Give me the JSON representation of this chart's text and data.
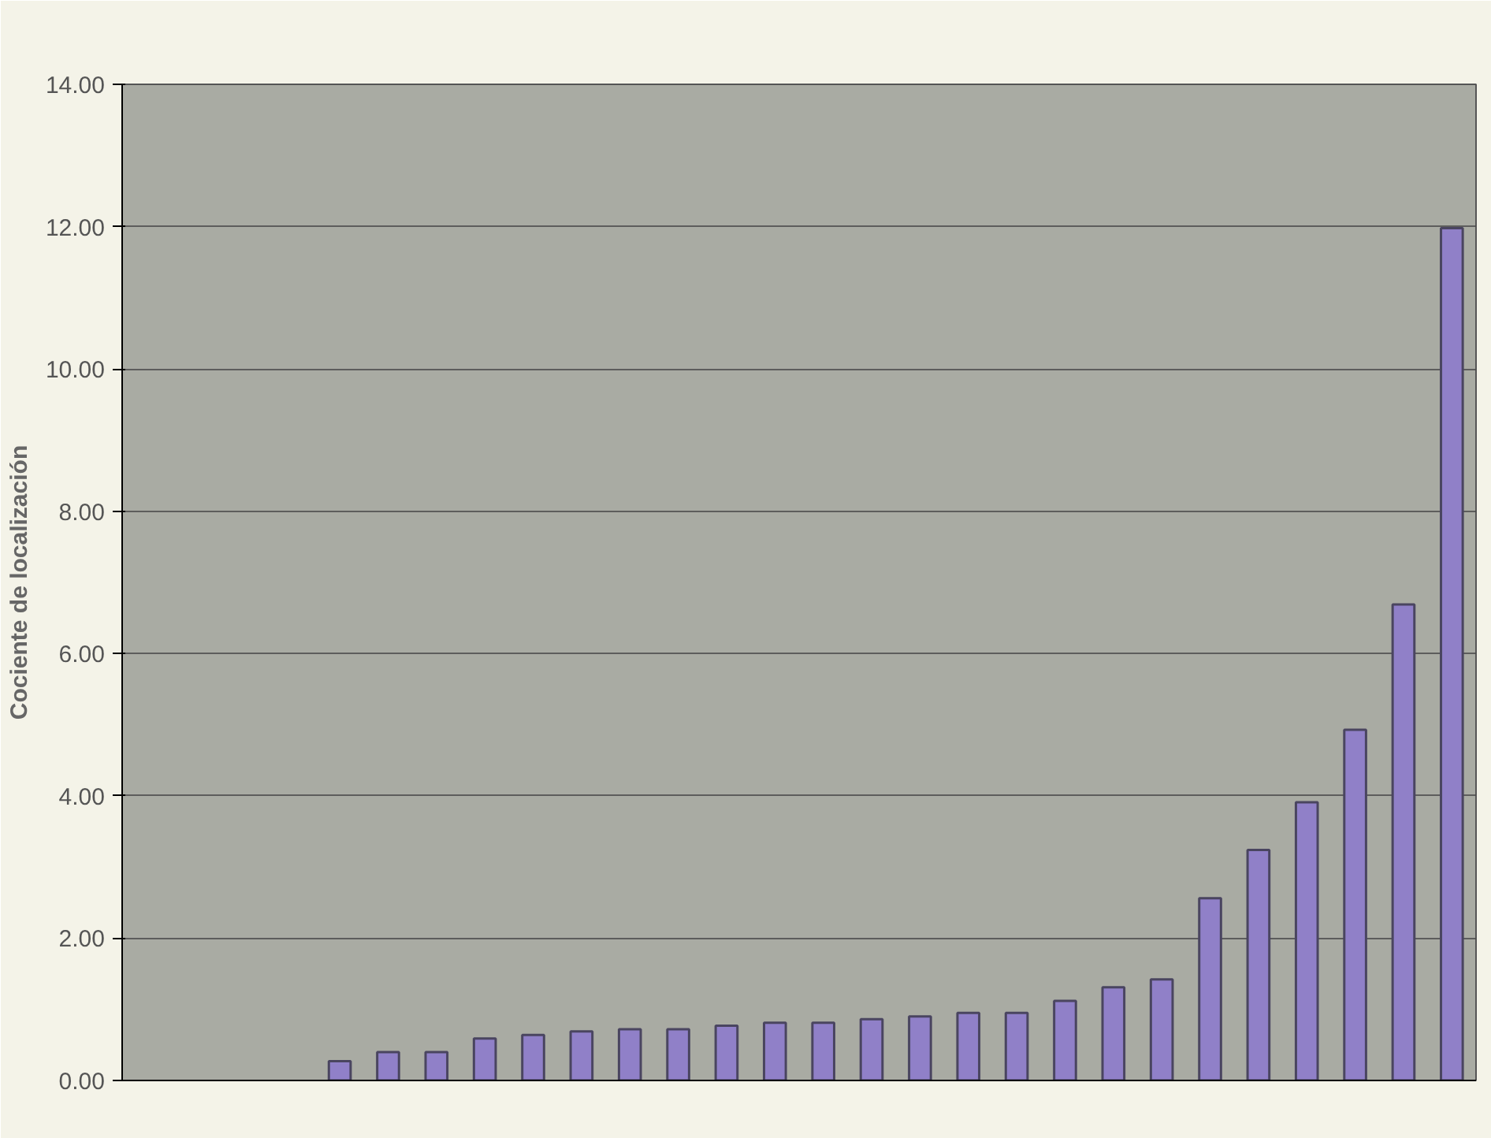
{
  "chart_data": {
    "type": "bar",
    "ylabel": "Cociente de localización",
    "categories": [
      null,
      null,
      null,
      null,
      null,
      null,
      null,
      null,
      null,
      null,
      null,
      null,
      null,
      null,
      null,
      null,
      null,
      null,
      null,
      null,
      null,
      null,
      null,
      null,
      null,
      null,
      null,
      null
    ],
    "values": [
      null,
      null,
      null,
      null,
      0.27,
      0.4,
      0.4,
      0.59,
      0.64,
      0.69,
      0.72,
      0.72,
      0.77,
      0.81,
      0.81,
      0.86,
      0.9,
      0.95,
      0.95,
      1.12,
      1.31,
      1.42,
      2.56,
      3.24,
      3.91,
      4.93,
      6.69,
      11.98
    ],
    "color": "#9080c8",
    "ylim": [
      0,
      14
    ],
    "yticks": [
      {
        "value": 0,
        "label": "0.00"
      },
      {
        "value": 2,
        "label": "2.00"
      },
      {
        "value": 4,
        "label": "4.00"
      },
      {
        "value": 6,
        "label": "6.00"
      },
      {
        "value": 8,
        "label": "8.00"
      },
      {
        "value": 10,
        "label": "10.00"
      },
      {
        "value": 12,
        "label": "12.00"
      },
      {
        "value": 14,
        "label": "14.00"
      }
    ],
    "grid": "y",
    "tick_labels": "y"
  }
}
